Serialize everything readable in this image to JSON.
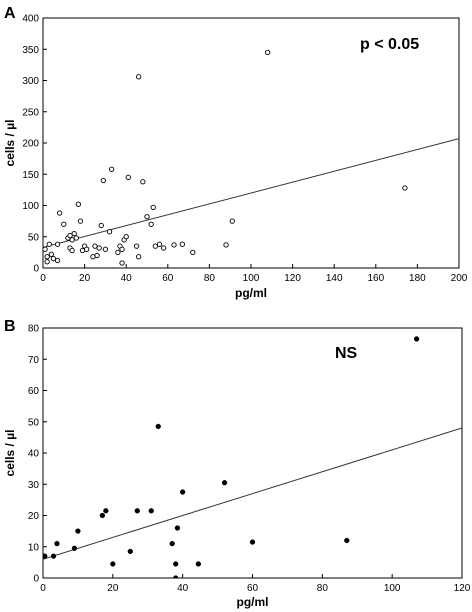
{
  "chart_data": [
    {
      "type": "scatter",
      "panel_label": "A",
      "annotation": "p < 0.05",
      "xlabel": "pg/ml",
      "ylabel": "cells / µl",
      "xlim": [
        0,
        200
      ],
      "ylim": [
        0,
        400
      ],
      "xticks": [
        0,
        20,
        40,
        60,
        80,
        100,
        120,
        140,
        160,
        180,
        200
      ],
      "yticks": [
        0,
        50,
        100,
        150,
        200,
        250,
        300,
        350,
        400
      ],
      "grid": false,
      "marker": "open-circle",
      "trendline": {
        "x": [
          0,
          200
        ],
        "y": [
          33,
          207
        ]
      },
      "points": [
        [
          1,
          30
        ],
        [
          2,
          10
        ],
        [
          2,
          18
        ],
        [
          3,
          38
        ],
        [
          4,
          22
        ],
        [
          5,
          15
        ],
        [
          7,
          12
        ],
        [
          7,
          38
        ],
        [
          8,
          88
        ],
        [
          10,
          70
        ],
        [
          12,
          48
        ],
        [
          13,
          52
        ],
        [
          13,
          32
        ],
        [
          14,
          28
        ],
        [
          14,
          45
        ],
        [
          15,
          55
        ],
        [
          16,
          48
        ],
        [
          17,
          102
        ],
        [
          18,
          75
        ],
        [
          19,
          28
        ],
        [
          20,
          35
        ],
        [
          21,
          30
        ],
        [
          24,
          18
        ],
        [
          25,
          35
        ],
        [
          26,
          20
        ],
        [
          27,
          32
        ],
        [
          28,
          68
        ],
        [
          29,
          140
        ],
        [
          30,
          30
        ],
        [
          32,
          58
        ],
        [
          33,
          158
        ],
        [
          36,
          25
        ],
        [
          37,
          35
        ],
        [
          38,
          8
        ],
        [
          38,
          30
        ],
        [
          39,
          45
        ],
        [
          40,
          50
        ],
        [
          41,
          145
        ],
        [
          45,
          35
        ],
        [
          46,
          18
        ],
        [
          46,
          306
        ],
        [
          48,
          138
        ],
        [
          50,
          82
        ],
        [
          52,
          70
        ],
        [
          53,
          97
        ],
        [
          54,
          35
        ],
        [
          56,
          38
        ],
        [
          58,
          32
        ],
        [
          63,
          37
        ],
        [
          67,
          38
        ],
        [
          72,
          25
        ],
        [
          88,
          37
        ],
        [
          91,
          75
        ],
        [
          108,
          345
        ],
        [
          174,
          128
        ]
      ]
    },
    {
      "type": "scatter",
      "panel_label": "B",
      "annotation": "NS",
      "xlabel": "pg/ml",
      "ylabel": "cells / µl",
      "xlim": [
        0,
        120
      ],
      "ylim": [
        0,
        80
      ],
      "xticks": [
        0,
        20,
        40,
        60,
        80,
        100,
        120
      ],
      "yticks": [
        0,
        10,
        20,
        30,
        40,
        50,
        60,
        70,
        80
      ],
      "grid": false,
      "marker": "filled-circle",
      "trendline": {
        "x": [
          0,
          120
        ],
        "y": [
          6,
          48
        ]
      },
      "points": [
        [
          0.5,
          7
        ],
        [
          3,
          7
        ],
        [
          4,
          11
        ],
        [
          9,
          9.5
        ],
        [
          10,
          15
        ],
        [
          17,
          20
        ],
        [
          18,
          21.5
        ],
        [
          20,
          4.5
        ],
        [
          25,
          8.5
        ],
        [
          27,
          21.5
        ],
        [
          31,
          21.5
        ],
        [
          33,
          48.5
        ],
        [
          37,
          11
        ],
        [
          38,
          4.5
        ],
        [
          38,
          0
        ],
        [
          38.5,
          16
        ],
        [
          40,
          27.5
        ],
        [
          44.5,
          4.5
        ],
        [
          52,
          30.5
        ],
        [
          60,
          11.5
        ],
        [
          87,
          12
        ],
        [
          107,
          76.5
        ]
      ]
    }
  ]
}
